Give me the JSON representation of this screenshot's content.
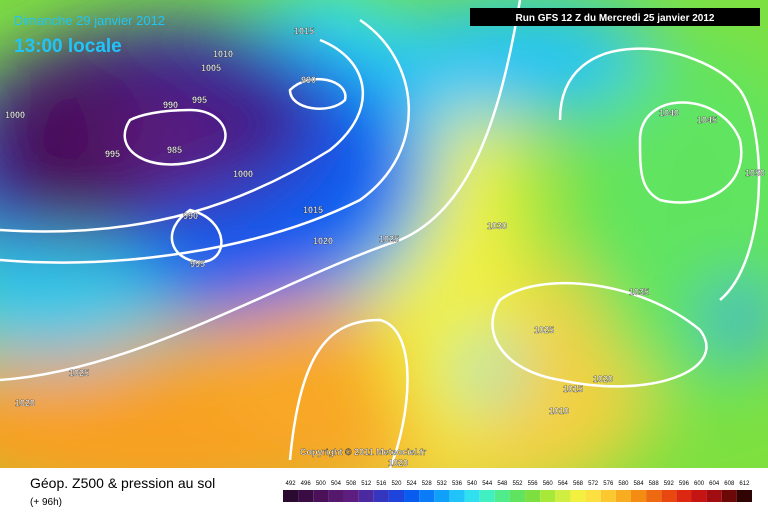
{
  "header": {
    "date": "Dimanche 29 janvier 2012",
    "time": "13:00 locale",
    "run": "Run GFS 12 Z du Mercredi 25 janvier 2012"
  },
  "isobars": [
    "1010",
    "1005",
    "1015",
    "990",
    "1000",
    "995",
    "990",
    "985",
    "995",
    "1000",
    "990",
    "995",
    "1015",
    "1020",
    "1025",
    "1030",
    "1040",
    "1045",
    "1050",
    "1035",
    "1025",
    "1020",
    "1015",
    "1010",
    "1025",
    "1020",
    "1020"
  ],
  "copyright": "Copyright © 2011 Meteociel.fr",
  "legend": {
    "title": "Géop. Z500 & pression au sol",
    "lead": "(+ 96h)",
    "levels": [
      492,
      496,
      500,
      504,
      508,
      512,
      516,
      520,
      524,
      528,
      532,
      536,
      540,
      544,
      548,
      552,
      556,
      560,
      564,
      568,
      572,
      576,
      580,
      584,
      588,
      592,
      596,
      600,
      604,
      608,
      612
    ],
    "colors": [
      "#2a0a2e",
      "#3a0c44",
      "#4a1158",
      "#56186c",
      "#5e1e80",
      "#4b2aa0",
      "#3436c0",
      "#1e44dc",
      "#0a5cf0",
      "#0a7cf8",
      "#10a0fa",
      "#20c4f8",
      "#30e0ee",
      "#40f0c0",
      "#50ec8c",
      "#60e460",
      "#7ee040",
      "#a8e838",
      "#d0ee40",
      "#f4f040",
      "#fce040",
      "#fcc830",
      "#f8ac20",
      "#f48c14",
      "#ee6a10",
      "#e84810",
      "#dc2810",
      "#c41414",
      "#a00c10",
      "#6c0808",
      "#300404"
    ]
  }
}
